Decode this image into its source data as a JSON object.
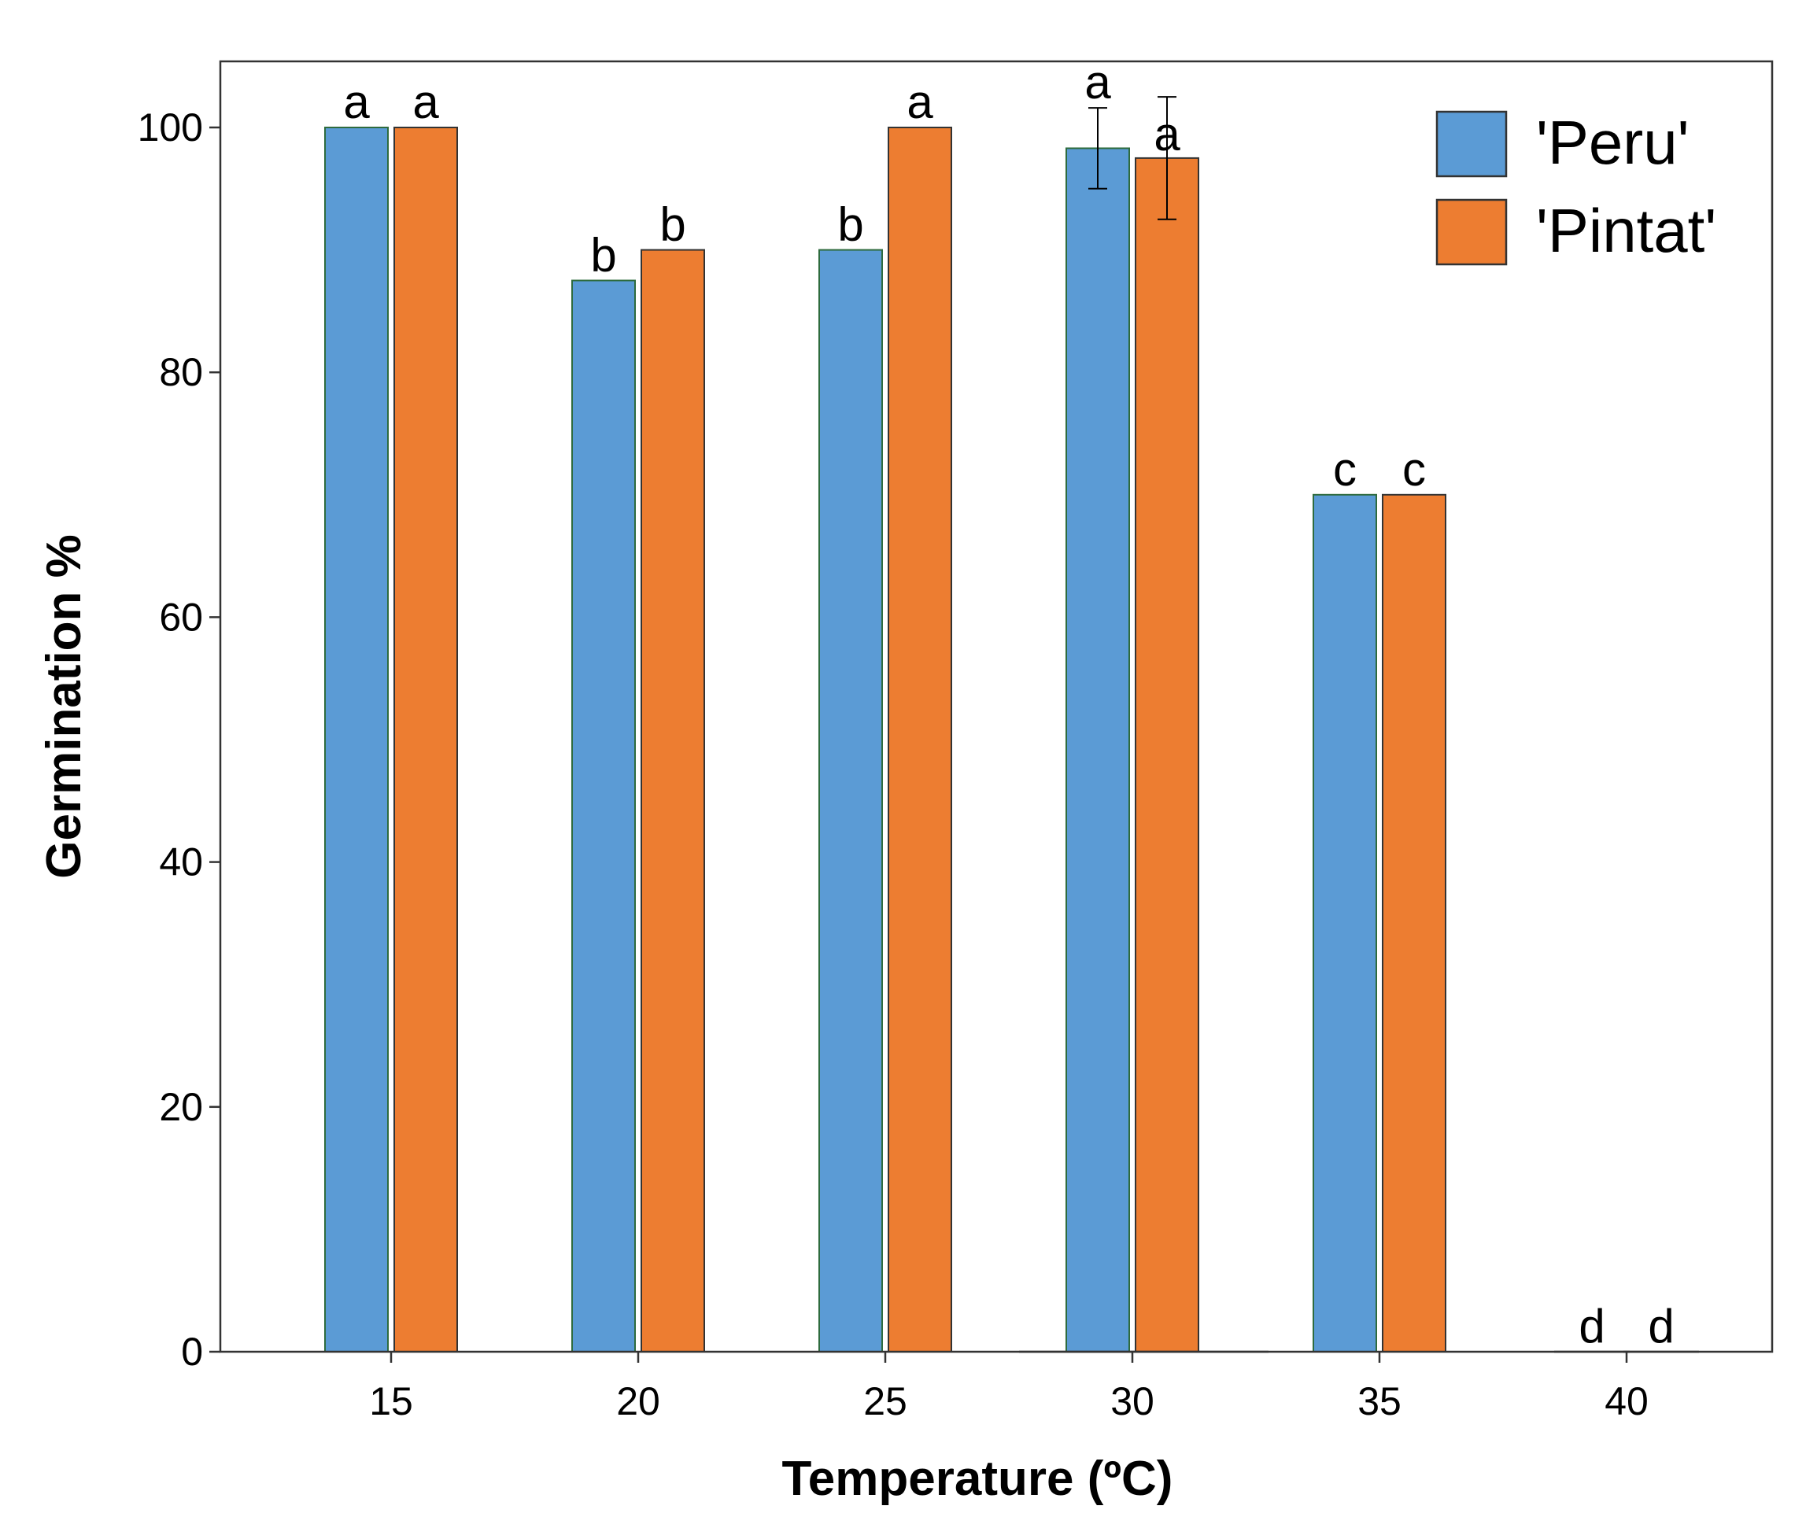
{
  "chart_data": {
    "type": "bar",
    "title": "",
    "xlabel": "Temperature (ºC)",
    "ylabel": "Germination %",
    "categories": [
      "15",
      "20",
      "25",
      "30",
      "35",
      "40"
    ],
    "ylim": [
      0,
      100
    ],
    "yticks": [
      "0",
      "20",
      "40",
      "60",
      "80",
      "100"
    ],
    "legend_position": "top-right",
    "series": [
      {
        "name": "'Peru'",
        "color": "#5b9bd5",
        "edge": "#2e6b3e",
        "values": [
          100,
          87.5,
          90,
          98.3,
          70,
          0
        ],
        "errors": [
          0,
          0,
          0,
          3.3,
          0,
          0
        ],
        "letters": [
          "a",
          "b",
          "b",
          "a",
          "c",
          "d"
        ]
      },
      {
        "name": "'Pintat'",
        "color": "#ed7d31",
        "edge": "#333333",
        "values": [
          100,
          90,
          100,
          97.5,
          70,
          0
        ],
        "errors": [
          0,
          0,
          0,
          5.0,
          0,
          0
        ],
        "letters": [
          "a",
          "b",
          "a",
          "a",
          "c",
          "d"
        ]
      }
    ]
  }
}
